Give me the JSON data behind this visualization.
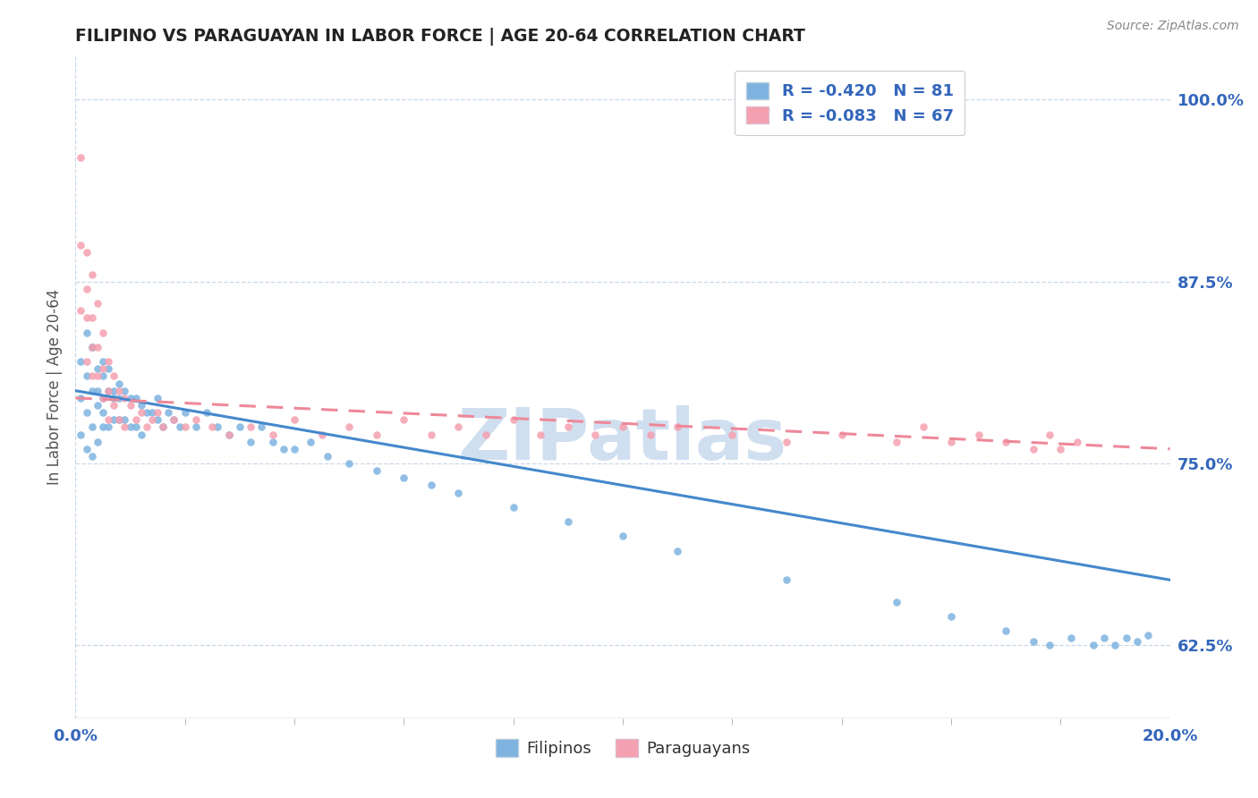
{
  "title": "FILIPINO VS PARAGUAYAN IN LABOR FORCE | AGE 20-64 CORRELATION CHART",
  "source": "Source: ZipAtlas.com",
  "ylabel": "In Labor Force | Age 20-64",
  "right_yticks": [
    0.625,
    0.75,
    0.875,
    1.0
  ],
  "right_yticklabels": [
    "62.5%",
    "75.0%",
    "87.5%",
    "100.0%"
  ],
  "xlim": [
    0.0,
    0.2
  ],
  "ylim": [
    0.575,
    1.03
  ],
  "filipino_R": -0.42,
  "filipino_N": 81,
  "paraguayan_R": -0.083,
  "paraguayan_N": 67,
  "blue_color": "#7EB3E0",
  "pink_color": "#F5A0B0",
  "line_blue": "#4488CC",
  "line_pink": "#EE8899",
  "title_color": "#222222",
  "axis_label_color": "#3366BB",
  "grid_color": "#C8D8E8",
  "watermark_color": "#D0DFF0",
  "legend_text_color": "#3366BB",
  "background_color": "#FFFFFF",
  "blue_scatter_x": [
    0.001,
    0.001,
    0.001,
    0.002,
    0.002,
    0.002,
    0.002,
    0.003,
    0.003,
    0.003,
    0.003,
    0.003,
    0.004,
    0.004,
    0.004,
    0.004,
    0.005,
    0.005,
    0.005,
    0.005,
    0.005,
    0.006,
    0.006,
    0.006,
    0.007,
    0.007,
    0.007,
    0.008,
    0.008,
    0.008,
    0.009,
    0.009,
    0.01,
    0.01,
    0.011,
    0.011,
    0.012,
    0.012,
    0.013,
    0.014,
    0.015,
    0.015,
    0.016,
    0.017,
    0.018,
    0.019,
    0.02,
    0.022,
    0.024,
    0.026,
    0.028,
    0.03,
    0.032,
    0.034,
    0.036,
    0.038,
    0.04,
    0.043,
    0.046,
    0.05,
    0.055,
    0.06,
    0.065,
    0.07,
    0.08,
    0.09,
    0.1,
    0.11,
    0.13,
    0.15,
    0.16,
    0.17,
    0.175,
    0.178,
    0.182,
    0.186,
    0.188,
    0.19,
    0.192,
    0.194,
    0.196
  ],
  "blue_scatter_y": [
    0.82,
    0.795,
    0.77,
    0.84,
    0.81,
    0.785,
    0.76,
    0.83,
    0.8,
    0.775,
    0.755,
    0.83,
    0.815,
    0.79,
    0.765,
    0.8,
    0.82,
    0.795,
    0.775,
    0.81,
    0.785,
    0.8,
    0.775,
    0.815,
    0.8,
    0.78,
    0.795,
    0.805,
    0.78,
    0.795,
    0.8,
    0.78,
    0.795,
    0.775,
    0.795,
    0.775,
    0.79,
    0.77,
    0.785,
    0.785,
    0.78,
    0.795,
    0.775,
    0.785,
    0.78,
    0.775,
    0.785,
    0.775,
    0.785,
    0.775,
    0.77,
    0.775,
    0.765,
    0.775,
    0.765,
    0.76,
    0.76,
    0.765,
    0.755,
    0.75,
    0.745,
    0.74,
    0.735,
    0.73,
    0.72,
    0.71,
    0.7,
    0.69,
    0.67,
    0.655,
    0.645,
    0.635,
    0.628,
    0.625,
    0.63,
    0.625,
    0.63,
    0.625,
    0.63,
    0.628,
    0.632
  ],
  "pink_scatter_x": [
    0.001,
    0.001,
    0.001,
    0.002,
    0.002,
    0.002,
    0.002,
    0.003,
    0.003,
    0.003,
    0.003,
    0.004,
    0.004,
    0.004,
    0.005,
    0.005,
    0.005,
    0.006,
    0.006,
    0.006,
    0.007,
    0.007,
    0.008,
    0.008,
    0.009,
    0.009,
    0.01,
    0.011,
    0.012,
    0.013,
    0.014,
    0.015,
    0.016,
    0.018,
    0.02,
    0.022,
    0.025,
    0.028,
    0.032,
    0.036,
    0.04,
    0.045,
    0.05,
    0.055,
    0.06,
    0.065,
    0.07,
    0.075,
    0.08,
    0.085,
    0.09,
    0.095,
    0.1,
    0.105,
    0.11,
    0.12,
    0.13,
    0.14,
    0.15,
    0.155,
    0.16,
    0.165,
    0.17,
    0.175,
    0.178,
    0.18,
    0.183
  ],
  "pink_scatter_y": [
    0.96,
    0.9,
    0.855,
    0.895,
    0.87,
    0.85,
    0.82,
    0.88,
    0.85,
    0.83,
    0.81,
    0.86,
    0.83,
    0.81,
    0.84,
    0.815,
    0.795,
    0.82,
    0.8,
    0.78,
    0.81,
    0.79,
    0.8,
    0.78,
    0.795,
    0.775,
    0.79,
    0.78,
    0.785,
    0.775,
    0.78,
    0.785,
    0.775,
    0.78,
    0.775,
    0.78,
    0.775,
    0.77,
    0.775,
    0.77,
    0.78,
    0.77,
    0.775,
    0.77,
    0.78,
    0.77,
    0.775,
    0.77,
    0.78,
    0.77,
    0.775,
    0.77,
    0.775,
    0.77,
    0.775,
    0.77,
    0.765,
    0.77,
    0.765,
    0.775,
    0.765,
    0.77,
    0.765,
    0.76,
    0.77,
    0.76,
    0.765
  ],
  "fil_trend_x0": 0.0,
  "fil_trend_y0": 0.8,
  "fil_trend_x1": 0.2,
  "fil_trend_y1": 0.67,
  "par_trend_x0": 0.0,
  "par_trend_y0": 0.795,
  "par_trend_x1": 0.2,
  "par_trend_y1": 0.76
}
